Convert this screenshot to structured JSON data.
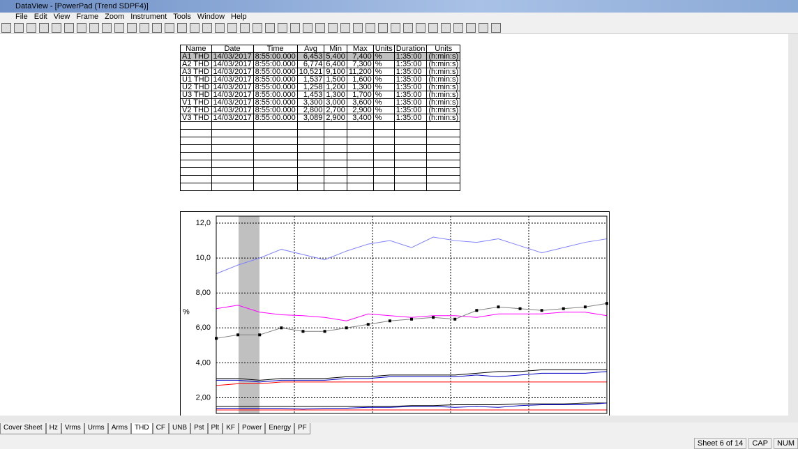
{
  "window": {
    "title": "DataView - [PowerPad (Trend SDPF4)]"
  },
  "menu": [
    "File",
    "Edit",
    "View",
    "Frame",
    "Zoom",
    "Instrument",
    "Tools",
    "Window",
    "Help"
  ],
  "table": {
    "headers": [
      "Name",
      "Date",
      "Time",
      "Avg",
      "Min",
      "Max",
      "Units",
      "Duration",
      "Units"
    ],
    "rows": [
      [
        "A1 THD",
        "14/03/2017",
        "8:55:00.000",
        "6,453",
        "5,400",
        "7,400",
        "%",
        "1:35:00",
        "(h:min:s)"
      ],
      [
        "A2 THD",
        "14/03/2017",
        "8:55:00.000",
        "6,774",
        "6,400",
        "7,300",
        "%",
        "1:35:00",
        "(h:min:s)"
      ],
      [
        "A3 THD",
        "14/03/2017",
        "8:55:00.000",
        "10,521",
        "9,100",
        "11,200",
        "%",
        "1:35:00",
        "(h:min:s)"
      ],
      [
        "U1 THD",
        "14/03/2017",
        "8:55:00.000",
        "1,537",
        "1,500",
        "1,600",
        "%",
        "1:35:00",
        "(h:min:s)"
      ],
      [
        "U2 THD",
        "14/03/2017",
        "8:55:00.000",
        "1,258",
        "1,200",
        "1,300",
        "%",
        "1:35:00",
        "(h:min:s)"
      ],
      [
        "U3 THD",
        "14/03/2017",
        "8:55:00.000",
        "1,453",
        "1,300",
        "1,700",
        "%",
        "1:35:00",
        "(h:min:s)"
      ],
      [
        "V1 THD",
        "14/03/2017",
        "8:55:00.000",
        "3,300",
        "3,000",
        "3,600",
        "%",
        "1:35:00",
        "(h:min:s)"
      ],
      [
        "V2 THD",
        "14/03/2017",
        "8:55:00.000",
        "2,800",
        "2,700",
        "2,900",
        "%",
        "1:35:00",
        "(h:min:s)"
      ],
      [
        "V3 THD",
        "14/03/2017",
        "8:55:00.000",
        "3,089",
        "2,900",
        "3,400",
        "%",
        "1:35:00",
        "(h:min:s)"
      ]
    ]
  },
  "chart_data": {
    "type": "line",
    "y_label": "%",
    "categories": [
      null,
      null,
      null,
      null,
      null,
      null,
      null,
      null,
      null,
      null,
      null,
      null,
      null,
      null,
      null,
      null,
      null,
      null,
      null
    ],
    "ylim": [
      1.1,
      12.4
    ],
    "yticks": [
      {
        "value": 2,
        "label": "2,00"
      },
      {
        "value": 4,
        "label": "4,00"
      },
      {
        "value": 6,
        "label": "6,00"
      },
      {
        "value": 8,
        "label": "8,00"
      },
      {
        "value": 10,
        "label": "10,0"
      },
      {
        "value": 12,
        "label": "12,0"
      }
    ],
    "grid": true,
    "series": [
      {
        "color": "#8080ff",
        "values": [
          9.1,
          9.6,
          10.0,
          10.5,
          10.2,
          9.9,
          10.4,
          10.8,
          11.0,
          10.6,
          11.2,
          11.0,
          10.9,
          11.1,
          10.7,
          10.3,
          10.6,
          10.9,
          11.1
        ]
      },
      {
        "color": "#ff00ff",
        "values": [
          7.1,
          7.3,
          6.9,
          6.75,
          6.7,
          6.6,
          6.4,
          6.8,
          6.7,
          6.6,
          6.7,
          6.7,
          6.6,
          6.8,
          6.8,
          6.8,
          6.9,
          6.9,
          6.7
        ]
      },
      {
        "color": "#808080",
        "markers": true,
        "values": [
          5.4,
          5.6,
          5.6,
          6.0,
          5.8,
          5.8,
          6.0,
          6.2,
          6.4,
          6.5,
          6.6,
          6.5,
          7.0,
          7.2,
          7.1,
          7.0,
          7.1,
          7.2,
          7.4
        ]
      },
      {
        "color": "#000000",
        "values": [
          3.1,
          3.1,
          3.0,
          3.1,
          3.1,
          3.1,
          3.2,
          3.2,
          3.3,
          3.3,
          3.3,
          3.3,
          3.4,
          3.5,
          3.5,
          3.6,
          3.6,
          3.6,
          3.6
        ]
      },
      {
        "color": "#0000c0",
        "values": [
          3.0,
          3.0,
          2.9,
          3.0,
          3.0,
          3.0,
          3.1,
          3.1,
          3.2,
          3.2,
          3.2,
          3.2,
          3.3,
          3.2,
          3.3,
          3.4,
          3.4,
          3.4,
          3.5
        ]
      },
      {
        "color": "#ff0000",
        "values": [
          2.7,
          2.8,
          2.8,
          2.9,
          2.9,
          2.9,
          2.9,
          2.9,
          2.9,
          2.9,
          2.9,
          2.9,
          2.9,
          2.9,
          2.9,
          2.9,
          2.9,
          2.9,
          2.9
        ]
      },
      {
        "color": "#000000",
        "values": [
          1.5,
          1.5,
          1.5,
          1.5,
          1.5,
          1.5,
          1.5,
          1.5,
          1.5,
          1.55,
          1.55,
          1.6,
          1.6,
          1.6,
          1.65,
          1.65,
          1.65,
          1.7,
          1.7
        ]
      },
      {
        "color": "#0000c0",
        "values": [
          1.4,
          1.4,
          1.4,
          1.4,
          1.35,
          1.4,
          1.4,
          1.45,
          1.45,
          1.5,
          1.5,
          1.45,
          1.5,
          1.45,
          1.55,
          1.6,
          1.6,
          1.6,
          1.7
        ]
      },
      {
        "color": "#ff0000",
        "values": [
          1.3,
          1.3,
          1.3,
          1.3,
          1.3,
          1.3,
          1.3,
          1.3,
          1.3,
          1.3,
          1.3,
          1.3,
          1.3,
          1.3,
          1.3,
          1.3,
          1.3,
          1.3,
          1.3
        ]
      }
    ]
  },
  "tabs": [
    "Cover Sheet",
    "Hz",
    "Vrms",
    "Urms",
    "Arms",
    "THD",
    "CF",
    "UNB",
    "Pst",
    "Plt",
    "KF",
    "Power",
    "Energy",
    "PF"
  ],
  "status": [
    "Sheet 6 of 14",
    "CAP",
    "NUM"
  ]
}
